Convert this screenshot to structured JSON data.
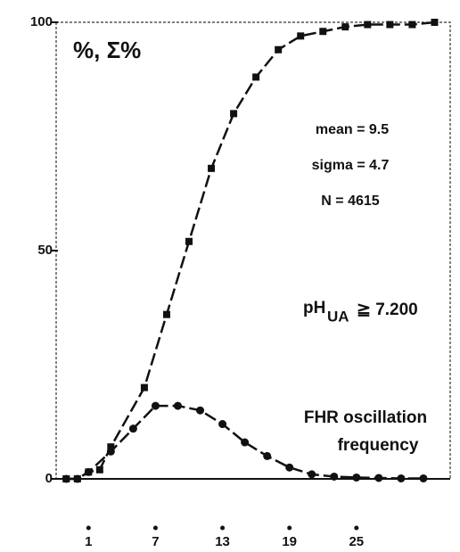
{
  "chart_data": {
    "type": "line",
    "title": "%, Σ%",
    "annotations": [
      "mean = 9.5",
      "sigma = 4.7",
      "N = 4615",
      "pH",
      "UA",
      "≧ 7.200",
      "FHR oscillation",
      "frequency"
    ],
    "series": [
      {
        "marker": "square",
        "color": "#111111",
        "x": [
          -1,
          0,
          1,
          2,
          3,
          6,
          8,
          10,
          12,
          14,
          16,
          18,
          20,
          22,
          24,
          26,
          28,
          30,
          32
        ],
        "values": [
          0,
          0,
          1.5,
          2,
          7,
          20,
          36,
          52,
          68,
          80,
          88,
          94,
          97,
          98,
          99,
          99.5,
          99.5,
          99.5,
          100
        ]
      },
      {
        "marker": "circle",
        "color": "#111111",
        "x": [
          -1,
          0,
          1,
          3,
          5,
          7,
          9,
          11,
          13,
          15,
          17,
          19,
          21,
          23,
          25,
          27,
          29,
          31
        ],
        "values": [
          0,
          0,
          1.5,
          6,
          11,
          16,
          16,
          15,
          12,
          8,
          5,
          2.5,
          1,
          0.5,
          0.3,
          0.2,
          0.1,
          0.1
        ]
      }
    ],
    "xlim": [
      -1.9,
      33.4
    ],
    "xticks": [
      1,
      7,
      13,
      19,
      25
    ],
    "ylim": [
      0,
      100
    ],
    "yticks": [
      0,
      50,
      100
    ]
  }
}
